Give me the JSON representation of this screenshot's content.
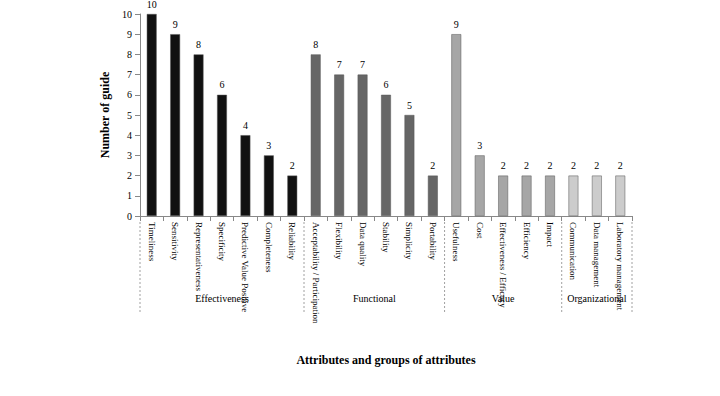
{
  "chart_data": {
    "type": "bar",
    "x_label": "Attributes and groups of attributes",
    "y_label": "Number of guide",
    "categories": [
      "Timeliness",
      "Sensitivity",
      "Representativeness",
      "Specificity",
      "Predictive Value Positive",
      "Completeness",
      "Reliability",
      "Acceptability / Participation",
      "Flexibility",
      "Data quality",
      "Stability",
      "Simplicity",
      "Portability",
      "Usefulness",
      "Cost",
      "Effectiveness / Efficacy",
      "Efficiency",
      "Impact",
      "Communication",
      "Data management",
      "Laboratory management"
    ],
    "category_groups": [
      "Effectiveness",
      "Effectiveness",
      "Effectiveness",
      "Effectiveness",
      "Effectiveness",
      "Effectiveness",
      "Effectiveness",
      "Functional",
      "Functional",
      "Functional",
      "Functional",
      "Functional",
      "Functional",
      "Value",
      "Value",
      "Value",
      "Value",
      "Value",
      "Organizational",
      "Organizational",
      "Organizational"
    ],
    "values": [
      10,
      9,
      8,
      6,
      4,
      3,
      2,
      8,
      7,
      7,
      6,
      5,
      2,
      9,
      3,
      2,
      2,
      2,
      2,
      2,
      2
    ],
    "colors": [
      "#111111",
      "#111111",
      "#111111",
      "#111111",
      "#111111",
      "#111111",
      "#111111",
      "#666666",
      "#666666",
      "#666666",
      "#666666",
      "#666666",
      "#666666",
      "#a6a6a6",
      "#a6a6a6",
      "#a6a6a6",
      "#a6a6a6",
      "#a6a6a6",
      "#cccccc",
      "#cccccc",
      "#cccccc"
    ],
    "ylim": [
      0,
      10
    ],
    "yticks": [
      0,
      1,
      2,
      3,
      4,
      5,
      6,
      7,
      8,
      9,
      10
    ],
    "grid": false,
    "data_labels": true
  }
}
